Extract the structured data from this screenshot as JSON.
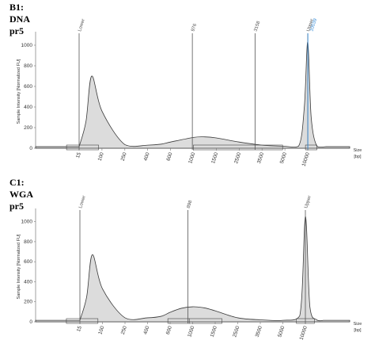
{
  "chart_data": [
    {
      "type": "area",
      "panel_label": "B1: DNA pr5",
      "ylabel": "Sample Intensity [Normalized FU]",
      "xlabel": "Size",
      "xunit": "[bp]",
      "y_ticks": [
        "0",
        "200",
        "400",
        "600",
        "800",
        "1000"
      ],
      "ylim": [
        0,
        1100
      ],
      "x_ticks": [
        "15",
        "100",
        "250",
        "400",
        "600",
        "1000",
        "1500",
        "2500",
        "3500",
        "5000",
        "10000"
      ],
      "peak_labels": [
        {
          "text": "Lower",
          "size_bp": 15,
          "color": "#555555"
        },
        {
          "text": "976",
          "size_bp": 976,
          "color": "#555555"
        },
        {
          "text": "3158",
          "size_bp": 3158,
          "color": "#555555"
        },
        {
          "text": "Upper",
          "size_bp": 10000,
          "color": "#555555"
        },
        {
          "text": "10039",
          "size_bp": 10039,
          "color": "#3b8fd9"
        }
      ],
      "trace": {
        "x_tick_index": [
          0,
          0.3,
          0.55,
          1,
          2,
          3,
          3.6,
          4,
          5,
          5.5,
          6,
          7,
          8,
          8.9,
          9.6,
          9.85,
          10,
          10.15,
          10.4,
          10.8
        ],
        "intensity": [
          15,
          260,
          700,
          360,
          35,
          30,
          40,
          60,
          105,
          110,
          100,
          60,
          30,
          20,
          20,
          400,
          1030,
          300,
          20,
          15
        ]
      },
      "marker_tick_index": [
        0,
        5,
        8.9,
        10
      ]
    },
    {
      "type": "area",
      "panel_label": "C1: WGA pr5",
      "ylabel": "Sample Intensity [Normalized FU]",
      "xlabel": "Size",
      "xunit": "[bp]",
      "y_ticks": [
        "0",
        "200",
        "400",
        "600",
        "800",
        "1000"
      ],
      "ylim": [
        0,
        1100
      ],
      "x_ticks": [
        "15",
        "100",
        "250",
        "400",
        "600",
        "1000",
        "1500",
        "2500",
        "3500",
        "5000",
        "10000"
      ],
      "peak_labels": [
        {
          "text": "Lower",
          "size_bp": 15,
          "color": "#555555"
        },
        {
          "text": "898",
          "size_bp": 898,
          "color": "#555555"
        },
        {
          "text": "Upper",
          "size_bp": 10000,
          "color": "#555555"
        }
      ],
      "trace": {
        "x_tick_index": [
          0,
          0.3,
          0.55,
          1,
          2,
          3,
          3.6,
          4,
          4.5,
          5,
          5.5,
          6,
          7,
          8,
          9,
          9.75,
          10,
          10.2,
          10.5,
          10.8
        ],
        "intensity": [
          15,
          250,
          670,
          330,
          40,
          40,
          55,
          95,
          135,
          150,
          140,
          110,
          40,
          20,
          15,
          60,
          1050,
          150,
          20,
          15
        ]
      },
      "marker_tick_index": [
        0,
        4.85,
        10
      ]
    }
  ]
}
